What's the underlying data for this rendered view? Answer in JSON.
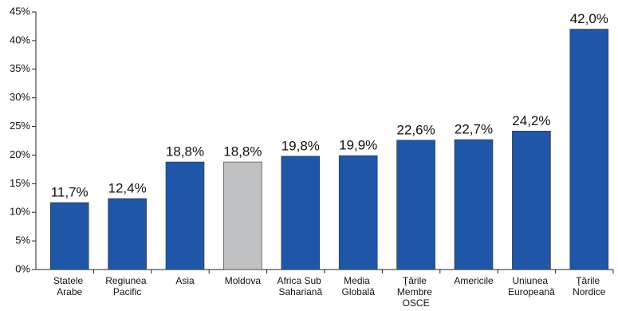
{
  "chart_data": {
    "type": "bar",
    "categories": [
      "Statele Arabe",
      "Regiunea Pacific",
      "Asia",
      "Moldova",
      "Africa Sub Sahariană",
      "Media Globală",
      "Ţările Membre OSCE",
      "Americile",
      "Uniunea Europeană",
      "Ţările Nordice"
    ],
    "values": [
      11.7,
      12.4,
      18.8,
      18.8,
      19.8,
      19.9,
      22.6,
      22.7,
      24.2,
      42.0
    ],
    "value_labels": [
      "11,7%",
      "12,4%",
      "18,8%",
      "18,8%",
      "19,8%",
      "19,9%",
      "22,6%",
      "22,7%",
      "24,2%",
      "42,0%"
    ],
    "colors": [
      "#1f56a8",
      "#1f56a8",
      "#1f56a8",
      "#bfc0c2",
      "#1f56a8",
      "#1f56a8",
      "#1f56a8",
      "#1f56a8",
      "#1f56a8",
      "#1f56a8"
    ],
    "ylim": [
      0,
      45
    ],
    "yticks": [
      {
        "value": 0,
        "label": "0%"
      },
      {
        "value": 5,
        "label": "5%"
      },
      {
        "value": 10,
        "label": "10%"
      },
      {
        "value": 15,
        "label": "15%"
      },
      {
        "value": 20,
        "label": "20%"
      },
      {
        "value": 25,
        "label": "25%"
      },
      {
        "value": 30,
        "label": "30%"
      },
      {
        "value": 35,
        "label": "35%"
      },
      {
        "value": 40,
        "label": "40%"
      },
      {
        "value": 45,
        "label": "45%"
      }
    ],
    "grid": false
  }
}
